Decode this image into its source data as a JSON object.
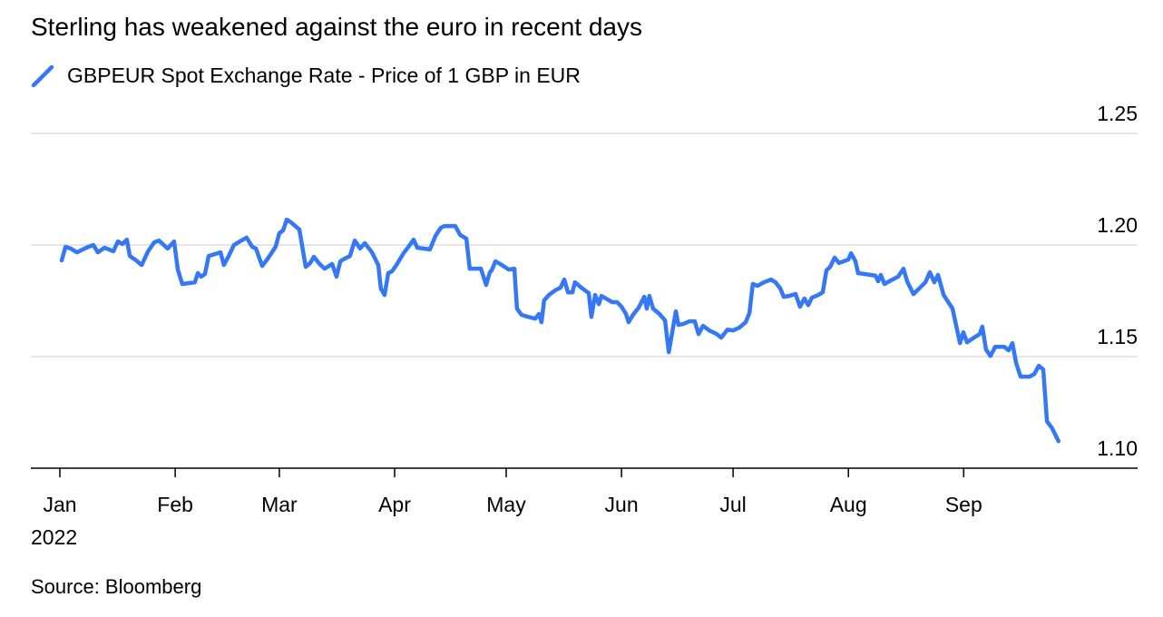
{
  "title": "Sterling has weakened against the euro in recent days",
  "source": "Source: Bloomberg",
  "chart_data": {
    "type": "line",
    "title": "Sterling has weakened against the euro in recent days",
    "legend": [
      {
        "label": "GBPEUR Spot Exchange Rate - Price of 1 GBP in EUR",
        "color": "#3478f6"
      }
    ],
    "legend_placement": "top-left",
    "xlabel": "",
    "ylabel": "",
    "x_unit": "day of year 2022 (0 = Jan 1)",
    "x_ticks": [
      {
        "day": 0,
        "label": "Jan",
        "sublabel": "2022"
      },
      {
        "day": 31,
        "label": "Feb"
      },
      {
        "day": 59,
        "label": "Mar"
      },
      {
        "day": 90,
        "label": "Apr"
      },
      {
        "day": 120,
        "label": "May"
      },
      {
        "day": 151,
        "label": "Jun"
      },
      {
        "day": 181,
        "label": "Jul"
      },
      {
        "day": 212,
        "label": "Aug"
      },
      {
        "day": 243,
        "label": "Sep"
      }
    ],
    "y_ticks": [
      {
        "value": 1.25,
        "label": "1.25"
      },
      {
        "value": 1.2,
        "label": "1.20"
      },
      {
        "value": 1.15,
        "label": "1.15"
      },
      {
        "value": 1.1,
        "label": "1.10"
      }
    ],
    "ylim": [
      1.1,
      1.25
    ],
    "xlim": [
      0,
      288
    ],
    "grid": true,
    "series": [
      {
        "name": "GBPEUR Spot Exchange Rate - Price of 1 GBP in EUR",
        "color": "#3478f6",
        "x": [
          0.5,
          1.5,
          2.9,
          4.6,
          7.1,
          9.0,
          10.2,
          12.0,
          14.4,
          15.6,
          16.8,
          18.0,
          18.8,
          20.5,
          22.0,
          23.7,
          25.4,
          26.6,
          29.0,
          30.7,
          31.7,
          32.9,
          36.3,
          37.1,
          38.0,
          39.0,
          40.0,
          43.2,
          44.1,
          45.4,
          46.8,
          48.8,
          50.2,
          51.7,
          52.7,
          54.4,
          55.9,
          58.0,
          59.0,
          60.0,
          61.0,
          62.4,
          64.4,
          66.1,
          67.3,
          68.3,
          69.8,
          71.2,
          73.2,
          74.4,
          75.4,
          76.6,
          78.0,
          79.3,
          80.7,
          82.0,
          83.9,
          85.6,
          86.3,
          87.3,
          88.3,
          89.3,
          90.5,
          92.4,
          93.9,
          95.1,
          96.1,
          99.5,
          101.0,
          102.4,
          103.4,
          106.3,
          107.6,
          109.3,
          110.2,
          113.2,
          114.6,
          115.6,
          116.1,
          117.1,
          118.8,
          120.7,
          122.2,
          122.9,
          124.1,
          125.9,
          127.8,
          128.8,
          129.5,
          130.2,
          131.5,
          133.2,
          134.6,
          135.6,
          136.6,
          137.8,
          138.5,
          140.2,
          142.2,
          142.9,
          143.9,
          144.9,
          145.6,
          146.8,
          148.5,
          149.8,
          151.0,
          152.2,
          152.9,
          154.1,
          155.6,
          157.1,
          157.8,
          158.5,
          159.5,
          161.2,
          162.7,
          163.7,
          165.6,
          166.3,
          167.6,
          169.3,
          170.7,
          171.7,
          172.9,
          174.6,
          176.6,
          177.8,
          179.5,
          181.0,
          182.7,
          184.4,
          185.4,
          186.3,
          187.6,
          189.3,
          191.2,
          192.4,
          193.7,
          194.6,
          196.1,
          197.8,
          199.0,
          200.2,
          201.2,
          202.2,
          203.9,
          205.1,
          206.1,
          207.1,
          208.3,
          209.5,
          212.0,
          212.7,
          213.9,
          214.6,
          218.0,
          219.3,
          220.0,
          220.7,
          221.7,
          223.4,
          225.4,
          226.8,
          227.8,
          229.5,
          231.0,
          232.7,
          233.9,
          235.1,
          236.1,
          237.6,
          240.0,
          242.0,
          242.9,
          243.9,
          245.4,
          247.3,
          248.0,
          249.0,
          250.2,
          251.5,
          253.9,
          255.1,
          256.1,
          257.1,
          258.3,
          260.7,
          262.0,
          263.2,
          264.4,
          265.4,
          266.8,
          268.5
        ],
        "y": [
          1.1931,
          1.1992,
          1.1984,
          1.1967,
          1.1988,
          1.2,
          1.1967,
          1.1988,
          1.1972,
          1.2016,
          1.2004,
          1.2024,
          1.1951,
          1.1931,
          1.191,
          1.1972,
          1.2012,
          1.202,
          1.1984,
          1.2016,
          1.189,
          1.1825,
          1.1833,
          1.1874,
          1.1858,
          1.187,
          1.1951,
          1.1967,
          1.191,
          1.1951,
          1.2,
          1.202,
          1.2033,
          1.1992,
          1.1984,
          1.1906,
          1.1939,
          1.1992,
          1.2053,
          1.2065,
          1.2114,
          1.2098,
          1.2069,
          1.1902,
          1.1919,
          1.1947,
          1.1915,
          1.1894,
          1.1915,
          1.1858,
          1.1927,
          1.1939,
          1.1951,
          1.202,
          1.1984,
          1.2008,
          1.1967,
          1.191,
          1.1805,
          1.1776,
          1.1874,
          1.1882,
          1.191,
          1.1963,
          1.1996,
          1.2024,
          1.1988,
          1.198,
          1.2041,
          1.2077,
          1.2085,
          1.2085,
          1.2045,
          1.2028,
          1.1894,
          1.1894,
          1.1821,
          1.1878,
          1.1886,
          1.1927,
          1.191,
          1.189,
          1.1894,
          1.1715,
          1.1687,
          1.1678,
          1.167,
          1.1691,
          1.1654,
          1.1752,
          1.1776,
          1.1797,
          1.1809,
          1.1845,
          1.1788,
          1.1788,
          1.1833,
          1.1809,
          1.1784,
          1.1678,
          1.1776,
          1.1735,
          1.1772,
          1.176,
          1.1744,
          1.1744,
          1.1723,
          1.1691,
          1.1654,
          1.1687,
          1.1719,
          1.1768,
          1.1715,
          1.1772,
          1.1715,
          1.1691,
          1.1662,
          1.152,
          1.1703,
          1.1642,
          1.1646,
          1.1658,
          1.1658,
          1.1601,
          1.1638,
          1.1617,
          1.1601,
          1.1585,
          1.1621,
          1.1617,
          1.163,
          1.1654,
          1.1695,
          1.1825,
          1.1817,
          1.1833,
          1.1845,
          1.1833,
          1.1805,
          1.1768,
          1.1772,
          1.178,
          1.1723,
          1.176,
          1.1731,
          1.1764,
          1.1776,
          1.1788,
          1.1886,
          1.1902,
          1.1943,
          1.1919,
          1.1935,
          1.1963,
          1.1927,
          1.1874,
          1.1866,
          1.1862,
          1.1837,
          1.1866,
          1.1825,
          1.1841,
          1.1858,
          1.1894,
          1.1837,
          1.178,
          1.1805,
          1.1833,
          1.1878,
          1.1833,
          1.1866,
          1.1776,
          1.1715,
          1.156,
          1.1609,
          1.1564,
          1.1581,
          1.1601,
          1.1634,
          1.1532,
          1.1503,
          1.1544,
          1.1544,
          1.1528,
          1.156,
          1.1471,
          1.141,
          1.141,
          1.1422,
          1.1459,
          1.1442,
          1.121,
          1.1178,
          1.1121
        ]
      }
    ]
  }
}
